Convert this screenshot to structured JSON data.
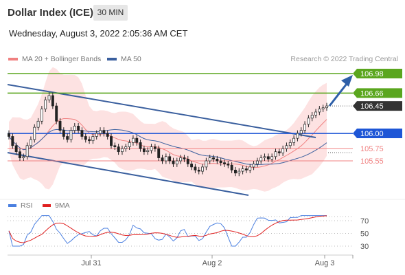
{
  "header": {
    "title": "Dollar Index (ICE)",
    "timeframe": "30 MIN",
    "datetime": "Wednesday, August 3, 2022 2:05:36 AM CET"
  },
  "legend": {
    "ma20_label": "MA 20 + Bollinger Bands",
    "ma50_label": "MA 50",
    "copyright": "Research © 2022 Trading Central",
    "rsi_label": "RSI",
    "ma9_label": "9MA"
  },
  "colors": {
    "ma20": "#f08080",
    "ma50": "#3a5f9e",
    "bollinger_fill": "#fde2e2",
    "resistance": "#5aa61e",
    "pivot": "#1e56d6",
    "support": "#f08080",
    "current": "#333333",
    "rsi": "#4a7fe0",
    "rsi_ma": "#e02020"
  },
  "chart_data": [
    {
      "type": "candlestick",
      "x_labels": [
        "Jul 31",
        "Aug 2",
        "Aug 3"
      ],
      "y_axis": "right",
      "price_levels": [
        {
          "name": "106.98",
          "value": 106.98,
          "kind": "target"
        },
        {
          "name": "106.66",
          "value": 106.66,
          "kind": "resistance"
        },
        {
          "name": "106.45",
          "value": 106.45,
          "kind": "last"
        },
        {
          "name": "106.00",
          "value": 106.0,
          "kind": "pivot"
        },
        {
          "name": "105.75",
          "value": 105.75,
          "kind": "support"
        },
        {
          "name": "105.55",
          "value": 105.55,
          "kind": "support"
        }
      ],
      "closes": [
        105.95,
        105.8,
        105.7,
        105.6,
        105.62,
        105.8,
        105.9,
        106.1,
        106.2,
        106.4,
        106.55,
        106.62,
        106.45,
        106.2,
        106.05,
        105.95,
        105.9,
        106.05,
        106.12,
        106.05,
        105.95,
        105.9,
        105.88,
        105.95,
        106.0,
        106.05,
        106.0,
        105.95,
        105.8,
        105.78,
        105.7,
        105.75,
        105.78,
        105.85,
        105.92,
        105.85,
        105.75,
        105.7,
        105.72,
        105.78,
        105.75,
        105.6,
        105.55,
        105.62,
        105.55,
        105.5,
        105.55,
        105.6,
        105.58,
        105.5,
        105.45,
        105.4,
        105.38,
        105.45,
        105.55,
        105.6,
        105.58,
        105.55,
        105.52,
        105.5,
        105.48,
        105.4,
        105.35,
        105.38,
        105.42,
        105.4,
        105.45,
        105.5,
        105.55,
        105.6,
        105.62,
        105.58,
        105.62,
        105.7,
        105.68,
        105.75,
        105.8,
        105.85,
        105.92,
        106.0,
        106.05,
        106.15,
        106.25,
        106.3,
        106.35,
        106.4,
        106.42,
        106.45
      ],
      "rsi": {
        "levels": [
          70,
          50,
          30
        ],
        "ylim": [
          20,
          80
        ]
      }
    }
  ]
}
